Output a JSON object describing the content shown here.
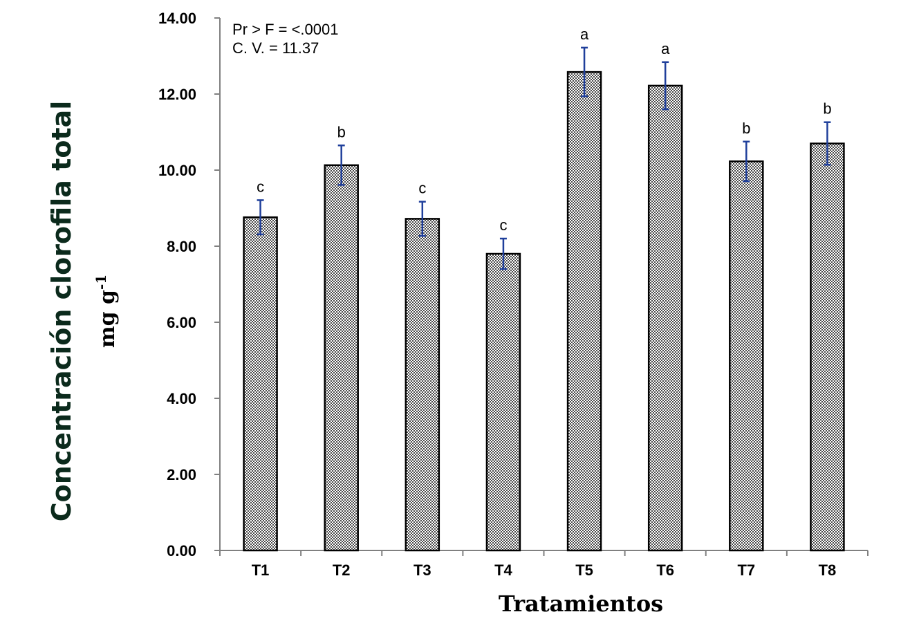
{
  "chart_data": {
    "type": "bar",
    "categories": [
      "T1",
      "T2",
      "T3",
      "T4",
      "T5",
      "T6",
      "T7",
      "T8"
    ],
    "values": [
      8.76,
      10.13,
      8.72,
      7.8,
      12.58,
      12.22,
      10.23,
      10.7
    ],
    "errors": [
      0.45,
      0.52,
      0.45,
      0.4,
      0.64,
      0.62,
      0.52,
      0.56
    ],
    "significance_letters": [
      "c",
      "b",
      "c",
      "c",
      "a",
      "a",
      "b",
      "b"
    ],
    "title": "",
    "xlabel": "Tratamientos",
    "ylabel": "Concentración clorofila total",
    "ylabel_unit_base": "mg g",
    "ylabel_unit_sup": "-1",
    "ylim": [
      0,
      14
    ],
    "yticks": [
      "0.00",
      "2.00",
      "4.00",
      "6.00",
      "8.00",
      "10.00",
      "12.00",
      "14.00"
    ],
    "annotations": [
      "Pr > F = <.0001",
      "C. V. = 11.37"
    ],
    "grid": false,
    "legend": "none",
    "colors": {
      "bar_fill_pattern": "#9a9a9a",
      "bar_outline": "#000000",
      "error_bar": "#1f3f9b",
      "axis": "#808080",
      "ylabel": "#0b2a1c"
    }
  }
}
